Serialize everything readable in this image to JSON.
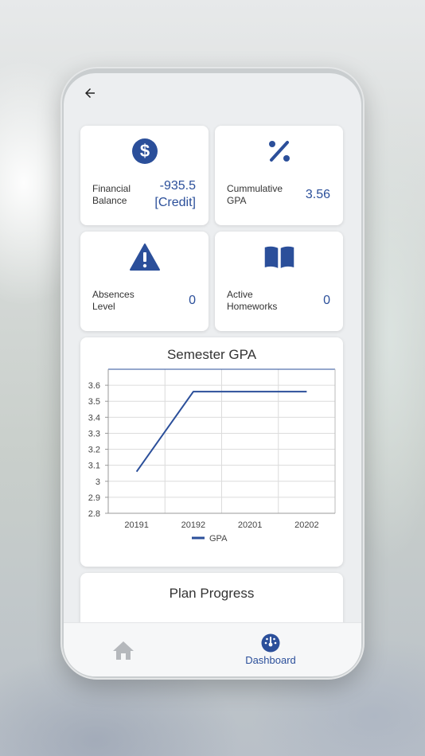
{
  "colors": {
    "accent": "#2b4f9a",
    "icon_inactive": "#b5b8bc",
    "text": "#333333"
  },
  "stats": [
    {
      "label_line1": "Financial",
      "label_line2": "Balance",
      "value_line1": "-935.5",
      "value_line2": "[Credit]",
      "icon": "dollar-icon"
    },
    {
      "label_line1": "Cummulative",
      "label_line2": "GPA",
      "value_line1": "3.56",
      "value_line2": "",
      "icon": "percent-icon"
    },
    {
      "label_line1": "Absences",
      "label_line2": "Level",
      "value_line1": "0",
      "value_line2": "",
      "icon": "warning-icon"
    },
    {
      "label_line1": "Active",
      "label_line2": "Homeworks",
      "value_line1": "0",
      "value_line2": "",
      "icon": "book-icon"
    }
  ],
  "chart_data": {
    "type": "line",
    "title": "Semester GPA",
    "categories": [
      "20191",
      "20192",
      "20201",
      "20202"
    ],
    "series": [
      {
        "name": "GPA",
        "values": [
          3.06,
          3.56,
          3.56,
          3.56
        ]
      }
    ],
    "ylim": [
      2.8,
      3.7
    ],
    "yticks": [
      "3.6",
      "3.5",
      "3.4",
      "3.3",
      "3.2",
      "3.1",
      "3",
      "2.9",
      "2.8"
    ],
    "grid": true,
    "legend": "bottom",
    "color": "#2b4f9a"
  },
  "plan": {
    "title": "Plan Progress"
  },
  "nav": {
    "home_icon": "home-icon",
    "dashboard_label": "Dashboard",
    "dashboard_icon": "dashboard-icon"
  }
}
